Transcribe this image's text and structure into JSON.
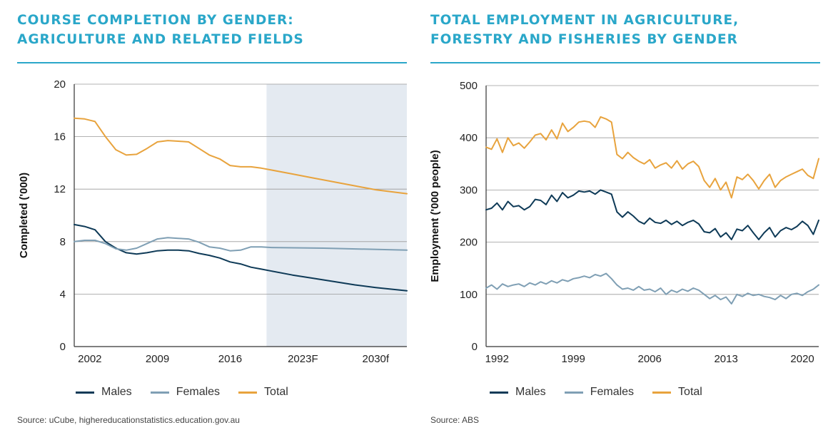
{
  "charts": [
    {
      "title_line1": "COURSE COMPLETION BY GENDER:",
      "title_line2": "AGRICULTURE AND RELATED FIELDS",
      "source": "Source: uCube, highereducationstatistics.education.gov.au",
      "legend": [
        "Males",
        "Females",
        "Total"
      ]
    },
    {
      "title_line1": "TOTAL EMPLOYMENT IN AGRICULTURE,",
      "title_line2": "FORESTRY AND FISHERIES BY GENDER",
      "source": "Source: ABS",
      "legend": [
        "Males",
        "Females",
        "Total"
      ]
    }
  ],
  "colors": {
    "males": "#0e3a57",
    "females": "#7f9fb4",
    "total": "#e8a33d",
    "accent": "#2aa7c9",
    "forecast_shade": "#e4eaf1"
  },
  "chart_data": [
    {
      "type": "line",
      "title": "COURSE COMPLETION BY GENDER: AGRICULTURE AND RELATED FIELDS",
      "xlabel": "",
      "ylabel": "Completed ('000)",
      "xlim": [
        2001,
        2033
      ],
      "ylim": [
        0,
        20
      ],
      "yticks": [
        0,
        4,
        8,
        12,
        16,
        20
      ],
      "xtick_labels": [
        {
          "x": 2002.5,
          "label": "2002"
        },
        {
          "x": 2009,
          "label": "2009"
        },
        {
          "x": 2016,
          "label": "2016"
        },
        {
          "x": 2023,
          "label": "2023F"
        },
        {
          "x": 2030,
          "label": "2030f"
        }
      ],
      "forecast_region": [
        2019.5,
        2033
      ],
      "grid": true,
      "legend_position": "bottom",
      "series": [
        {
          "name": "Males",
          "x": [
            2001,
            2002,
            2003,
            2004,
            2005,
            2006,
            2007,
            2008,
            2009,
            2010,
            2011,
            2012,
            2013,
            2014,
            2015,
            2016,
            2017,
            2018,
            2019,
            2020,
            2022,
            2024,
            2026,
            2028,
            2030,
            2033
          ],
          "y": [
            9.3,
            9.15,
            8.9,
            8.0,
            7.5,
            7.15,
            7.05,
            7.15,
            7.3,
            7.35,
            7.35,
            7.3,
            7.1,
            6.95,
            6.75,
            6.45,
            6.3,
            6.05,
            5.9,
            5.75,
            5.45,
            5.2,
            4.95,
            4.7,
            4.5,
            4.25
          ]
        },
        {
          "name": "Females",
          "x": [
            2001,
            2002,
            2003,
            2004,
            2005,
            2006,
            2007,
            2008,
            2009,
            2010,
            2011,
            2012,
            2013,
            2014,
            2015,
            2016,
            2017,
            2018,
            2019,
            2020,
            2025,
            2033
          ],
          "y": [
            8.0,
            8.1,
            8.1,
            7.85,
            7.45,
            7.35,
            7.5,
            7.85,
            8.2,
            8.3,
            8.25,
            8.2,
            7.95,
            7.6,
            7.5,
            7.3,
            7.35,
            7.6,
            7.6,
            7.55,
            7.5,
            7.35
          ]
        },
        {
          "name": "Total",
          "x": [
            2001,
            2002,
            2003,
            2004,
            2005,
            2006,
            2007,
            2008,
            2009,
            2010,
            2011,
            2012,
            2013,
            2014,
            2015,
            2016,
            2017,
            2018,
            2019,
            2020,
            2022,
            2024,
            2026,
            2028,
            2030,
            2033
          ],
          "y": [
            17.4,
            17.35,
            17.15,
            16.0,
            15.0,
            14.6,
            14.65,
            15.1,
            15.6,
            15.7,
            15.65,
            15.6,
            15.1,
            14.6,
            14.3,
            13.8,
            13.7,
            13.7,
            13.6,
            13.45,
            13.15,
            12.85,
            12.55,
            12.25,
            11.95,
            11.65
          ]
        }
      ]
    },
    {
      "type": "line",
      "title": "TOTAL EMPLOYMENT IN AGRICULTURE, FORESTRY AND FISHERIES BY GENDER",
      "xlabel": "",
      "ylabel": "Employment ('000 people)",
      "xlim": [
        1991,
        2021.5
      ],
      "ylim": [
        0,
        500
      ],
      "yticks": [
        0,
        100,
        200,
        300,
        400,
        500
      ],
      "xtick_labels": [
        {
          "x": 1992,
          "label": "1992"
        },
        {
          "x": 1999,
          "label": "1999"
        },
        {
          "x": 2006,
          "label": "2006"
        },
        {
          "x": 2013,
          "label": "2013"
        },
        {
          "x": 2020,
          "label": "2020"
        }
      ],
      "grid": true,
      "legend_position": "bottom",
      "series": [
        {
          "name": "Males",
          "x": [
            1991,
            1991.5,
            1992,
            1992.5,
            1993,
            1993.5,
            1994,
            1994.5,
            1995,
            1995.5,
            1996,
            1996.5,
            1997,
            1997.5,
            1998,
            1998.5,
            1999,
            1999.5,
            2000,
            2000.5,
            2001,
            2001.5,
            2002,
            2002.5,
            2003,
            2003.5,
            2004,
            2004.5,
            2005,
            2005.5,
            2006,
            2006.5,
            2007,
            2007.5,
            2008,
            2008.5,
            2009,
            2009.5,
            2010,
            2010.5,
            2011,
            2011.5,
            2012,
            2012.5,
            2013,
            2013.5,
            2014,
            2014.5,
            2015,
            2015.5,
            2016,
            2016.5,
            2017,
            2017.5,
            2018,
            2018.5,
            2019,
            2019.5,
            2020,
            2020.5,
            2021,
            2021.5
          ],
          "y": [
            262,
            265,
            275,
            262,
            278,
            268,
            270,
            262,
            268,
            282,
            280,
            272,
            290,
            278,
            295,
            285,
            290,
            298,
            296,
            298,
            292,
            300,
            296,
            292,
            258,
            248,
            258,
            250,
            240,
            235,
            246,
            238,
            236,
            242,
            234,
            240,
            232,
            238,
            242,
            235,
            220,
            218,
            226,
            210,
            218,
            205,
            225,
            222,
            232,
            218,
            205,
            218,
            228,
            210,
            222,
            228,
            224,
            230,
            240,
            232,
            215,
            242
          ]
        },
        {
          "name": "Females",
          "x": [
            1991,
            1991.5,
            1992,
            1992.5,
            1993,
            1993.5,
            1994,
            1994.5,
            1995,
            1995.5,
            1996,
            1996.5,
            1997,
            1997.5,
            1998,
            1998.5,
            1999,
            1999.5,
            2000,
            2000.5,
            2001,
            2001.5,
            2002,
            2002.5,
            2003,
            2003.5,
            2004,
            2004.5,
            2005,
            2005.5,
            2006,
            2006.5,
            2007,
            2007.5,
            2008,
            2008.5,
            2009,
            2009.5,
            2010,
            2010.5,
            2011,
            2011.5,
            2012,
            2012.5,
            2013,
            2013.5,
            2014,
            2014.5,
            2015,
            2015.5,
            2016,
            2016.5,
            2017,
            2017.5,
            2018,
            2018.5,
            2019,
            2019.5,
            2020,
            2020.5,
            2021,
            2021.5
          ],
          "y": [
            112,
            118,
            110,
            120,
            115,
            118,
            120,
            115,
            122,
            118,
            124,
            120,
            126,
            122,
            128,
            125,
            130,
            132,
            135,
            132,
            138,
            135,
            140,
            130,
            118,
            110,
            112,
            108,
            115,
            108,
            110,
            105,
            112,
            100,
            108,
            104,
            110,
            106,
            112,
            108,
            100,
            92,
            98,
            90,
            95,
            82,
            100,
            96,
            102,
            98,
            100,
            96,
            94,
            90,
            98,
            92,
            100,
            102,
            98,
            105,
            110,
            118
          ]
        },
        {
          "name": "Total",
          "x": [
            1991,
            1991.5,
            1992,
            1992.5,
            1993,
            1993.5,
            1994,
            1994.5,
            1995,
            1995.5,
            1996,
            1996.5,
            1997,
            1997.5,
            1998,
            1998.5,
            1999,
            1999.5,
            2000,
            2000.5,
            2001,
            2001.5,
            2002,
            2002.5,
            2003,
            2003.5,
            2004,
            2004.5,
            2005,
            2005.5,
            2006,
            2006.5,
            2007,
            2007.5,
            2008,
            2008.5,
            2009,
            2009.5,
            2010,
            2010.5,
            2011,
            2011.5,
            2012,
            2012.5,
            2013,
            2013.5,
            2014,
            2014.5,
            2015,
            2015.5,
            2016,
            2016.5,
            2017,
            2017.5,
            2018,
            2018.5,
            2019,
            2019.5,
            2020,
            2020.5,
            2021,
            2021.5
          ],
          "y": [
            382,
            378,
            398,
            372,
            400,
            385,
            390,
            380,
            392,
            405,
            408,
            396,
            415,
            398,
            428,
            412,
            420,
            430,
            432,
            430,
            420,
            440,
            436,
            430,
            368,
            360,
            372,
            362,
            355,
            350,
            358,
            342,
            348,
            352,
            342,
            356,
            340,
            350,
            355,
            345,
            318,
            305,
            322,
            300,
            315,
            285,
            325,
            320,
            330,
            318,
            302,
            318,
            330,
            305,
            318,
            325,
            330,
            335,
            340,
            328,
            322,
            360
          ]
        }
      ]
    }
  ]
}
